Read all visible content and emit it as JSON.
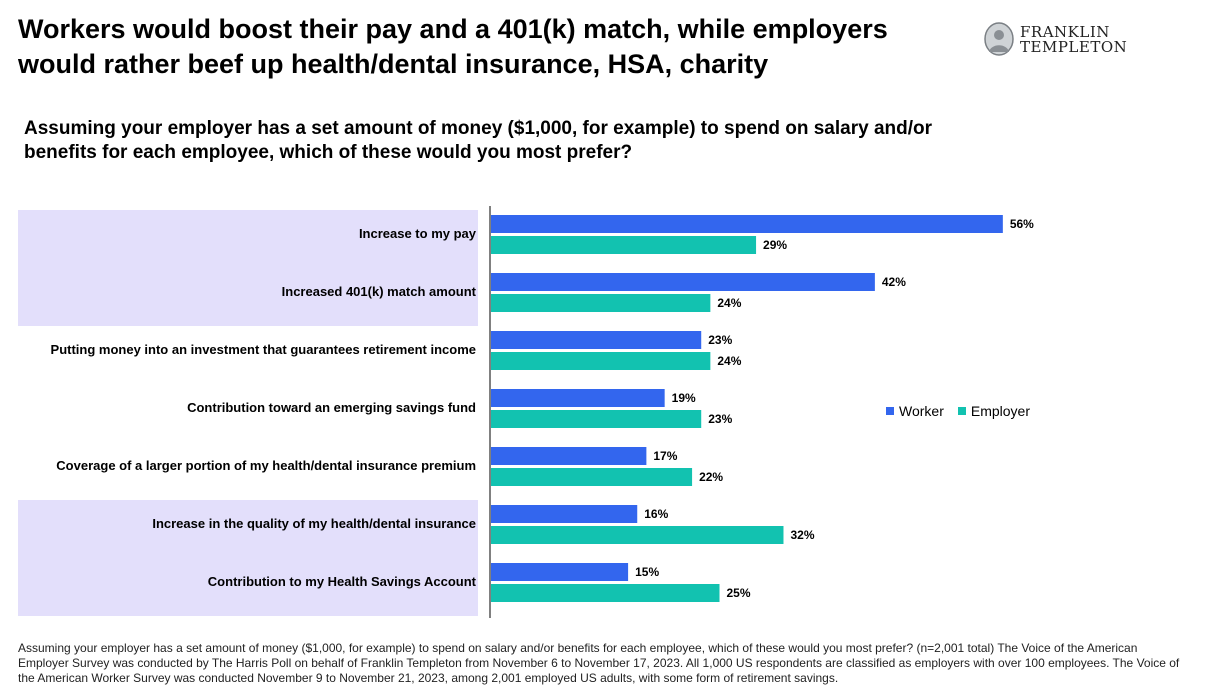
{
  "title": "Workers would boost their pay and a 401(k) match, while employers would rather beef up health/dental insurance, HSA, charity",
  "logo": {
    "line1": "FRANKLIN",
    "line2": "TEMPLETON"
  },
  "question": "Assuming your employer has a set amount of money ($1,000, for example) to spend on salary and/or benefits for each employee, which of these would you most prefer?",
  "colors": {
    "worker": "#3366ee",
    "employer": "#12c2b0",
    "highlight": "#e3dffb"
  },
  "chart_data": {
    "type": "bar",
    "orientation": "horizontal",
    "categories": [
      "Increase to my pay",
      "Increased 401(k) match amount",
      "Putting money into an investment that guarantees retirement income",
      "Contribution toward an emerging savings fund",
      "Coverage of a larger portion of my health/dental insurance premium",
      "Increase in the quality of my health/dental insurance",
      "Contribution to my Health Savings Account"
    ],
    "highlighted_categories": [
      0,
      1,
      5,
      6
    ],
    "series": [
      {
        "name": "Worker",
        "values": [
          56,
          42,
          23,
          19,
          17,
          16,
          15
        ],
        "labels": [
          "56%",
          "42%",
          "23%",
          "19%",
          "17%",
          "16%",
          "15%"
        ]
      },
      {
        "name": "Employer",
        "values": [
          29,
          24,
          24,
          23,
          22,
          32,
          25
        ],
        "labels": [
          "29%",
          "24%",
          "24%",
          "23%",
          "22%",
          "32%",
          "25%"
        ]
      }
    ],
    "xlim": [
      0,
      100
    ],
    "unit": "%",
    "grid": false,
    "legend": "right"
  },
  "footnote": {
    "question_text": "Assuming your employer has a set amount of money ($1,000, for example) to spend on salary and/or benefits for each employee, which of these would you most prefer? (n=2,001 total)",
    "source_text": " The Voice of the American Employer Survey was conducted by The Harris Poll on behalf of Franklin Templeton from November 6 to November 17, 2023. All 1,000 US respondents are classified as employers with over 100 employees. The Voice of the American Worker Survey was conducted November 9 to November 21, 2023, among 2,001 employed US adults, with some form of retirement savings."
  }
}
